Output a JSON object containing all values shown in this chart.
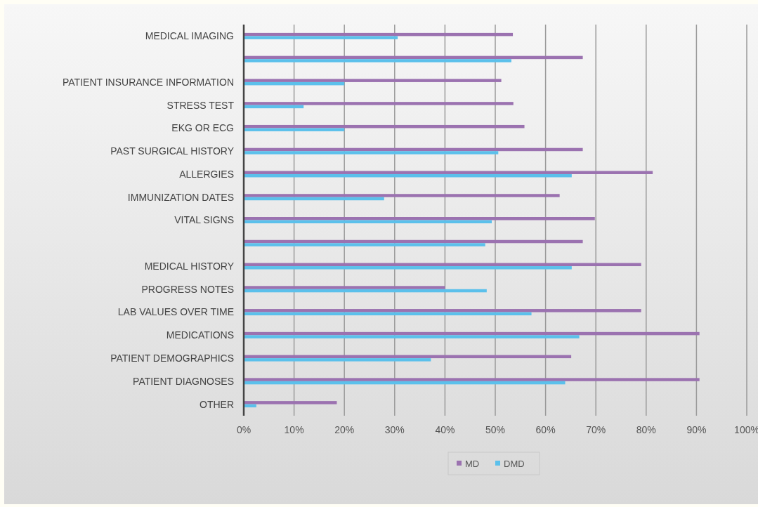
{
  "chart_data": {
    "type": "bar",
    "orientation": "horizontal",
    "categories": [
      "MEDICAL IMAGING",
      null,
      "PATIENT INSURANCE INFORMATION",
      "STRESS TEST",
      "EKG OR ECG",
      "PAST SURGICAL HISTORY",
      "ALLERGIES",
      "IMMUNIZATION DATES",
      "VITAL SIGNS",
      null,
      "MEDICAL HISTORY",
      "PROGRESS NOTES",
      "LAB VALUES OVER TIME",
      "MEDICATIONS",
      "PATIENT DEMOGRAPHICS",
      "PATIENT DIAGNOSES",
      "OTHER"
    ],
    "series": [
      {
        "name": "MD",
        "color": "#9b72b0",
        "values": [
          53.5,
          67.4,
          51.2,
          53.6,
          55.8,
          67.4,
          81.3,
          62.8,
          69.8,
          67.4,
          79.0,
          40.0,
          79.0,
          90.6,
          65.1,
          90.6,
          18.5
        ]
      },
      {
        "name": "DMD",
        "color": "#5bc0eb",
        "values": [
          30.6,
          53.2,
          20.0,
          11.9,
          20.0,
          50.6,
          65.2,
          27.9,
          49.3,
          48.0,
          65.2,
          48.3,
          57.2,
          66.7,
          37.2,
          63.9,
          2.5
        ]
      }
    ],
    "xlim": [
      0,
      100
    ],
    "xticks": [
      {
        "value": 0,
        "label": "0%"
      },
      {
        "value": 10,
        "label": "10%"
      },
      {
        "value": 20,
        "label": "20%"
      },
      {
        "value": 30,
        "label": "30%"
      },
      {
        "value": 40,
        "label": "40%"
      },
      {
        "value": 50,
        "label": "50%"
      },
      {
        "value": 60,
        "label": "60%"
      },
      {
        "value": 70,
        "label": "70%"
      },
      {
        "value": 80,
        "label": "80%"
      },
      {
        "value": 90,
        "label": "90%"
      },
      {
        "value": 100,
        "label": "100%"
      }
    ],
    "grid": "x",
    "legend": "bottom"
  }
}
